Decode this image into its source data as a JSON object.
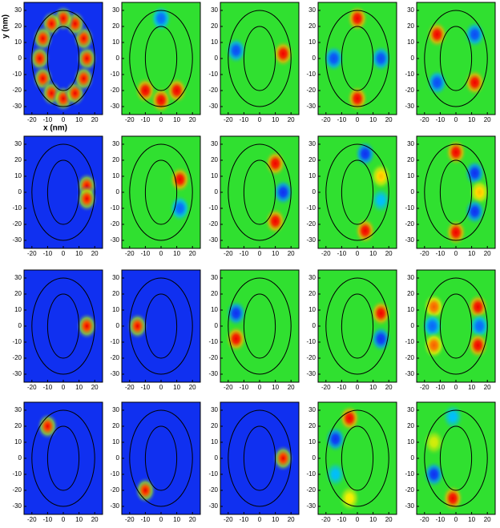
{
  "ring": {
    "outer": {
      "rx": 20,
      "ry": 30
    },
    "inner": {
      "rx": 10,
      "ry": 20
    }
  },
  "chart_data": [
    {
      "type": "heatmap",
      "kind": "density",
      "xlabel": "x (nm)",
      "ylabel": "y (nm)",
      "xlim": [
        -25,
        25
      ],
      "ylim": [
        -35,
        35
      ],
      "xticks": [
        -20,
        -10,
        0,
        10,
        20
      ],
      "yticks": [
        -30,
        -20,
        -10,
        0,
        10,
        20,
        30
      ],
      "peaks": [
        {
          "x": 15,
          "y": 0,
          "v": 1
        },
        {
          "x": 13,
          "y": 12.5,
          "v": 1
        },
        {
          "x": 7.5,
          "y": 21.7,
          "v": 1
        },
        {
          "x": 0,
          "y": 25,
          "v": 1
        },
        {
          "x": -7.5,
          "y": 21.7,
          "v": 1
        },
        {
          "x": -13,
          "y": 12.5,
          "v": 1
        },
        {
          "x": -15,
          "y": 0,
          "v": 1
        },
        {
          "x": -13,
          "y": -12.5,
          "v": 1
        },
        {
          "x": -7.5,
          "y": -21.7,
          "v": 1
        },
        {
          "x": 0,
          "y": -25,
          "v": 1
        },
        {
          "x": 7.5,
          "y": -21.7,
          "v": 1
        },
        {
          "x": 13,
          "y": -12.5,
          "v": 1
        }
      ]
    },
    {
      "type": "heatmap",
      "kind": "wave",
      "xlim": [
        -25,
        25
      ],
      "ylim": [
        -35,
        35
      ],
      "xticks": [
        -20,
        -10,
        0,
        10,
        20
      ],
      "yticks": [
        -30,
        -20,
        -10,
        0,
        10,
        20,
        30
      ],
      "peaks": [
        {
          "x": 0,
          "y": 25,
          "v": -0.8
        },
        {
          "x": -10,
          "y": -20,
          "v": 1
        },
        {
          "x": 0,
          "y": -26,
          "v": 1
        },
        {
          "x": 10,
          "y": -20,
          "v": 1
        }
      ]
    },
    {
      "type": "heatmap",
      "kind": "wave",
      "xlim": [
        -25,
        25
      ],
      "ylim": [
        -35,
        35
      ],
      "xticks": [
        -20,
        -10,
        0,
        10,
        20
      ],
      "yticks": [
        -30,
        -20,
        -10,
        0,
        10,
        20,
        30
      ],
      "peaks": [
        {
          "x": -15,
          "y": 5,
          "v": -0.9
        },
        {
          "x": 15,
          "y": 3,
          "v": 1
        }
      ]
    },
    {
      "type": "heatmap",
      "kind": "wave",
      "xlim": [
        -25,
        25
      ],
      "ylim": [
        -35,
        35
      ],
      "xticks": [
        -20,
        -10,
        0,
        10,
        20
      ],
      "yticks": [
        -30,
        -20,
        -10,
        0,
        10,
        20,
        30
      ],
      "peaks": [
        {
          "x": 0,
          "y": 25,
          "v": 1
        },
        {
          "x": 0,
          "y": -25,
          "v": 1
        },
        {
          "x": -15,
          "y": 0,
          "v": -0.9
        },
        {
          "x": 15,
          "y": 0,
          "v": -0.9
        }
      ]
    },
    {
      "type": "heatmap",
      "kind": "wave",
      "xlim": [
        -25,
        25
      ],
      "ylim": [
        -35,
        35
      ],
      "xticks": [
        -20,
        -10,
        0,
        10,
        20
      ],
      "yticks": [
        -30,
        -20,
        -10,
        0,
        10,
        20,
        30
      ],
      "peaks": [
        {
          "x": -12,
          "y": 15,
          "v": 1
        },
        {
          "x": 12,
          "y": -15,
          "v": 1
        },
        {
          "x": 12,
          "y": 15,
          "v": -0.9
        },
        {
          "x": -12,
          "y": -15,
          "v": -0.9
        }
      ]
    },
    {
      "type": "heatmap",
      "kind": "density",
      "xlim": [
        -25,
        25
      ],
      "ylim": [
        -35,
        35
      ],
      "xticks": [
        -20,
        -10,
        0,
        10,
        20
      ],
      "yticks": [
        -30,
        -20,
        -10,
        0,
        10,
        20,
        30
      ],
      "peaks": [
        {
          "x": 15,
          "y": 4,
          "v": 1
        },
        {
          "x": 15,
          "y": -4,
          "v": 1
        }
      ]
    },
    {
      "type": "heatmap",
      "kind": "wave",
      "xlim": [
        -25,
        25
      ],
      "ylim": [
        -35,
        35
      ],
      "xticks": [
        -20,
        -10,
        0,
        10,
        20
      ],
      "yticks": [
        -30,
        -20,
        -10,
        0,
        10,
        20,
        30
      ],
      "peaks": [
        {
          "x": 12,
          "y": 8,
          "v": 1
        },
        {
          "x": 12,
          "y": -10,
          "v": -0.8
        }
      ]
    },
    {
      "type": "heatmap",
      "kind": "wave",
      "xlim": [
        -25,
        25
      ],
      "ylim": [
        -35,
        35
      ],
      "xticks": [
        -20,
        -10,
        0,
        10,
        20
      ],
      "yticks": [
        -30,
        -20,
        -10,
        0,
        10,
        20,
        30
      ],
      "peaks": [
        {
          "x": 10,
          "y": 18,
          "v": 1
        },
        {
          "x": 15,
          "y": 0,
          "v": -1
        },
        {
          "x": 10,
          "y": -18,
          "v": 1
        }
      ]
    },
    {
      "type": "heatmap",
      "kind": "wave",
      "xlim": [
        -25,
        25
      ],
      "ylim": [
        -35,
        35
      ],
      "xticks": [
        -20,
        -10,
        0,
        10,
        20
      ],
      "yticks": [
        -30,
        -20,
        -10,
        0,
        10,
        20,
        30
      ],
      "peaks": [
        {
          "x": 5,
          "y": 24,
          "v": -1
        },
        {
          "x": 15,
          "y": 10,
          "v": 0.6
        },
        {
          "x": 15,
          "y": -5,
          "v": -0.5
        },
        {
          "x": 5,
          "y": -24,
          "v": 1
        }
      ]
    },
    {
      "type": "heatmap",
      "kind": "wave",
      "xlim": [
        -25,
        25
      ],
      "ylim": [
        -35,
        35
      ],
      "xticks": [
        -20,
        -10,
        0,
        10,
        20
      ],
      "yticks": [
        -30,
        -20,
        -10,
        0,
        10,
        20,
        30
      ],
      "peaks": [
        {
          "x": 0,
          "y": 25,
          "v": 1
        },
        {
          "x": 12,
          "y": 12,
          "v": -1
        },
        {
          "x": 15,
          "y": 0,
          "v": 0.6
        },
        {
          "x": 12,
          "y": -12,
          "v": -1
        },
        {
          "x": 0,
          "y": -25,
          "v": 1
        }
      ]
    },
    {
      "type": "heatmap",
      "kind": "density",
      "xlim": [
        -25,
        25
      ],
      "ylim": [
        -35,
        35
      ],
      "xticks": [
        -20,
        -10,
        0,
        10,
        20
      ],
      "yticks": [
        -30,
        -20,
        -10,
        0,
        10,
        20,
        30
      ],
      "peaks": [
        {
          "x": 15,
          "y": 0,
          "v": 1
        }
      ]
    },
    {
      "type": "heatmap",
      "kind": "density",
      "xlim": [
        -25,
        25
      ],
      "ylim": [
        -35,
        35
      ],
      "xticks": [
        -20,
        -10,
        0,
        10,
        20
      ],
      "yticks": [
        -30,
        -20,
        -10,
        0,
        10,
        20,
        30
      ],
      "peaks": [
        {
          "x": -15,
          "y": 0,
          "v": 1
        }
      ]
    },
    {
      "type": "heatmap",
      "kind": "wave",
      "xlim": [
        -25,
        25
      ],
      "ylim": [
        -35,
        35
      ],
      "xticks": [
        -20,
        -10,
        0,
        10,
        20
      ],
      "yticks": [
        -30,
        -20,
        -10,
        0,
        10,
        20,
        30
      ],
      "peaks": [
        {
          "x": -15,
          "y": 8,
          "v": -1
        },
        {
          "x": -15,
          "y": -8,
          "v": 1
        }
      ]
    },
    {
      "type": "heatmap",
      "kind": "wave",
      "xlim": [
        -25,
        25
      ],
      "ylim": [
        -35,
        35
      ],
      "xticks": [
        -20,
        -10,
        0,
        10,
        20
      ],
      "yticks": [
        -30,
        -20,
        -10,
        0,
        10,
        20,
        30
      ],
      "peaks": [
        {
          "x": 15,
          "y": 8,
          "v": 1
        },
        {
          "x": 15,
          "y": -8,
          "v": -1
        }
      ]
    },
    {
      "type": "heatmap",
      "kind": "wave",
      "xlim": [
        -25,
        25
      ],
      "ylim": [
        -35,
        35
      ],
      "xticks": [
        -20,
        -10,
        0,
        10,
        20
      ],
      "yticks": [
        -30,
        -20,
        -10,
        0,
        10,
        20,
        30
      ],
      "peaks": [
        {
          "x": -14,
          "y": 12,
          "v": 0.8
        },
        {
          "x": -15,
          "y": 0,
          "v": -0.8
        },
        {
          "x": -14,
          "y": -12,
          "v": 0.8
        },
        {
          "x": 14,
          "y": 12,
          "v": 1
        },
        {
          "x": 15,
          "y": 0,
          "v": -0.8
        },
        {
          "x": 14,
          "y": -12,
          "v": 1
        }
      ]
    },
    {
      "type": "heatmap",
      "kind": "density",
      "xlim": [
        -25,
        25
      ],
      "ylim": [
        -35,
        35
      ],
      "xticks": [
        -20,
        -10,
        0,
        10,
        20
      ],
      "yticks": [
        -30,
        -20,
        -10,
        0,
        10,
        20,
        30
      ],
      "peaks": [
        {
          "x": -10,
          "y": 20,
          "v": 1
        }
      ]
    },
    {
      "type": "heatmap",
      "kind": "density",
      "xlim": [
        -25,
        25
      ],
      "ylim": [
        -35,
        35
      ],
      "xticks": [
        -20,
        -10,
        0,
        10,
        20
      ],
      "yticks": [
        -30,
        -20,
        -10,
        0,
        10,
        20,
        30
      ],
      "peaks": [
        {
          "x": -10,
          "y": -20,
          "v": 1
        }
      ]
    },
    {
      "type": "heatmap",
      "kind": "density",
      "xlim": [
        -25,
        25
      ],
      "ylim": [
        -35,
        35
      ],
      "xticks": [
        -20,
        -10,
        0,
        10,
        20
      ],
      "yticks": [
        -30,
        -20,
        -10,
        0,
        10,
        20,
        30
      ],
      "peaks": [
        {
          "x": 15,
          "y": 0,
          "v": 1
        }
      ]
    },
    {
      "type": "heatmap",
      "kind": "wave",
      "xlim": [
        -25,
        25
      ],
      "ylim": [
        -35,
        35
      ],
      "xticks": [
        -20,
        -10,
        0,
        10,
        20
      ],
      "yticks": [
        -30,
        -20,
        -10,
        0,
        10,
        20,
        30
      ],
      "peaks": [
        {
          "x": -5,
          "y": 25,
          "v": 1
        },
        {
          "x": -14,
          "y": 12,
          "v": -1
        },
        {
          "x": -14,
          "y": -10,
          "v": -0.5
        },
        {
          "x": -5,
          "y": -25,
          "v": 0.5
        }
      ]
    },
    {
      "type": "heatmap",
      "kind": "wave",
      "xlim": [
        -25,
        25
      ],
      "ylim": [
        -35,
        35
      ],
      "xticks": [
        -20,
        -10,
        0,
        10,
        20
      ],
      "yticks": [
        -30,
        -20,
        -10,
        0,
        10,
        20,
        30
      ],
      "peaks": [
        {
          "x": -2,
          "y": 26,
          "v": -0.5
        },
        {
          "x": -14,
          "y": 10,
          "v": 0.4
        },
        {
          "x": -14,
          "y": -10,
          "v": -1
        },
        {
          "x": -2,
          "y": -25,
          "v": 1
        }
      ]
    }
  ]
}
